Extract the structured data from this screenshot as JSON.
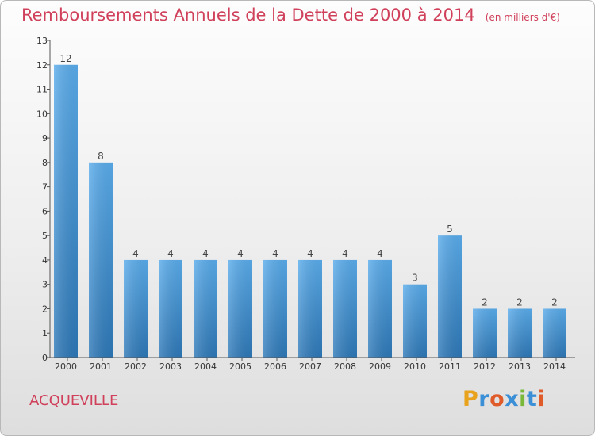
{
  "title": "Remboursements Annuels de la Dette de 2000 à 2014",
  "subtitle": "(en milliers d'€)",
  "town": "ACQUEVILLE",
  "logo": {
    "text": "Proxiti",
    "letters": [
      "P",
      "r",
      "o",
      "x",
      "i",
      "t",
      "i"
    ],
    "colors": [
      "#e8a21c",
      "#3b8fd6",
      "#e05b2a",
      "#3b8fd6",
      "#7ab83a",
      "#3b8fd6",
      "#e05b2a"
    ]
  },
  "colors": {
    "accent": "#d0405a",
    "bar_top": "#5aaceb",
    "bar_bottom": "#2e78b7",
    "axis": "#555555"
  },
  "chart_data": {
    "type": "bar",
    "categories": [
      "2000",
      "2001",
      "2002",
      "2003",
      "2004",
      "2005",
      "2006",
      "2007",
      "2008",
      "2009",
      "2010",
      "2011",
      "2012",
      "2013",
      "2014"
    ],
    "values": [
      12,
      8,
      4,
      4,
      4,
      4,
      4,
      4,
      4,
      4,
      3,
      5,
      2,
      2,
      2
    ],
    "ylim": [
      0,
      13
    ],
    "yticks": [
      "0",
      "1",
      "2",
      "3",
      "4",
      "5",
      "6",
      "7",
      "8",
      "9",
      "10",
      "11",
      "12",
      "13"
    ],
    "xlabel": "",
    "ylabel": "",
    "grid": false
  }
}
